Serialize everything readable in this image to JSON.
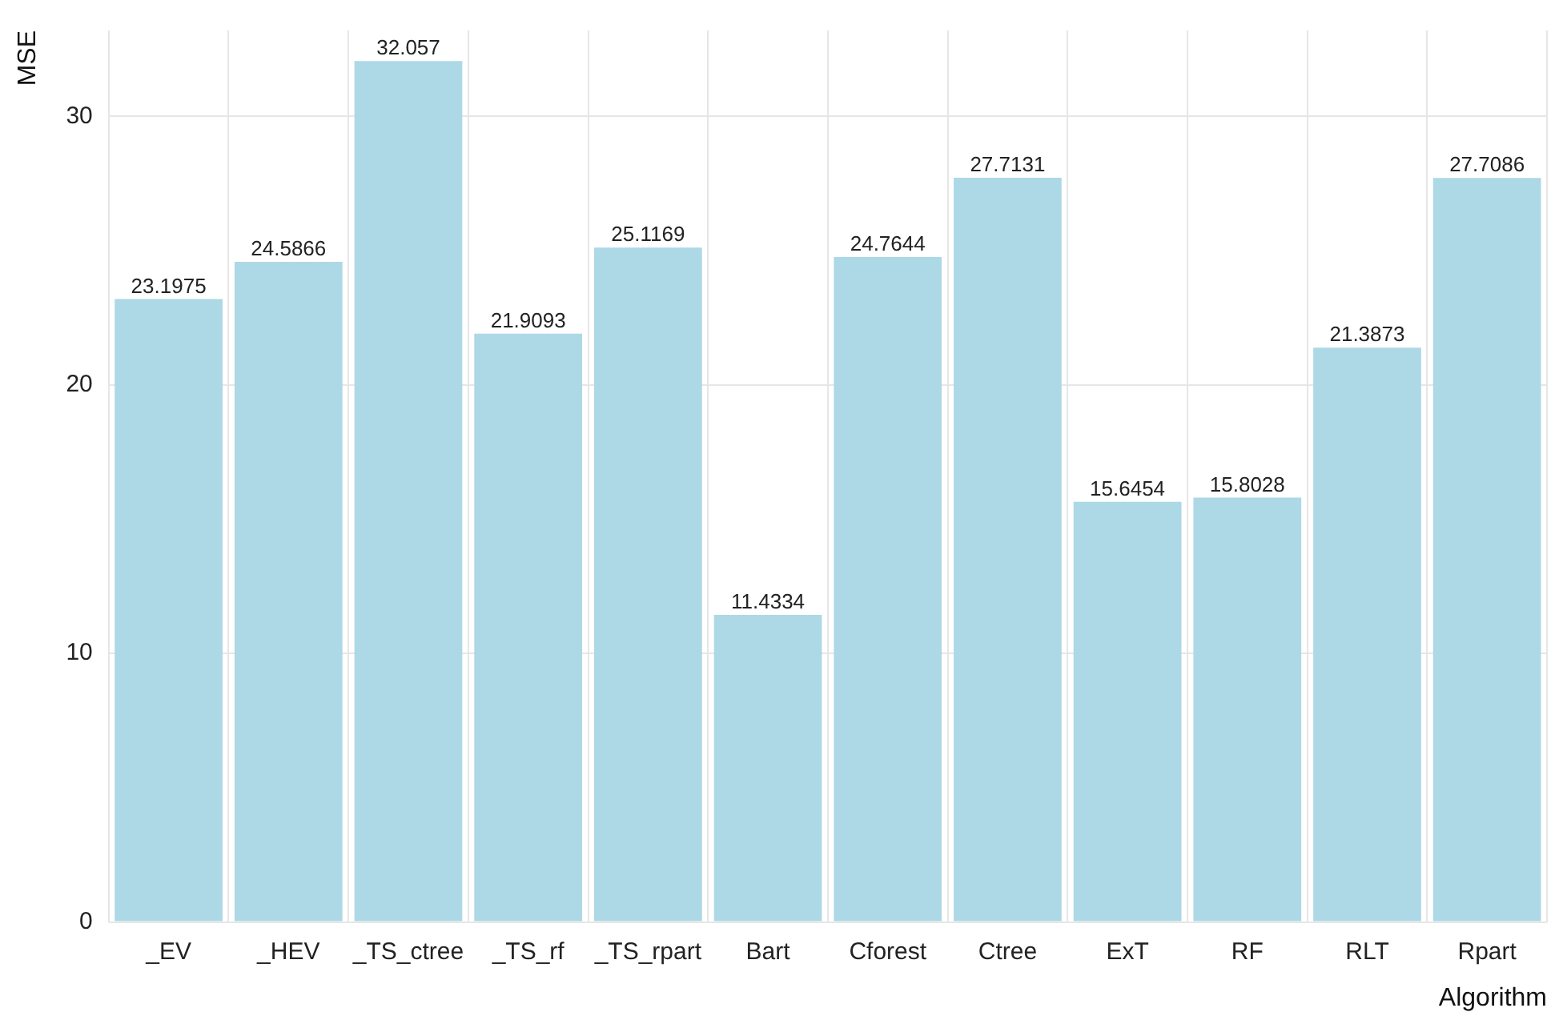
{
  "chart_data": {
    "type": "bar",
    "xlabel": "Algorithm",
    "ylabel": "MSE",
    "categories": [
      "_EV",
      "_HEV",
      "_TS_ctree",
      "_TS_rf",
      "_TS_rpart",
      "Bart",
      "Cforest",
      "Ctree",
      "ExT",
      "RF",
      "RLT",
      "Rpart"
    ],
    "values": [
      23.1975,
      24.5866,
      32.057,
      21.9093,
      25.1169,
      11.4334,
      24.7644,
      27.7131,
      15.6454,
      15.8028,
      21.3873,
      27.7086
    ],
    "color": "#add8e6",
    "ylim": [
      0,
      33.2
    ],
    "yticks": [
      0,
      10,
      20,
      30
    ],
    "grid": true,
    "data_labels": true,
    "legend": false
  }
}
